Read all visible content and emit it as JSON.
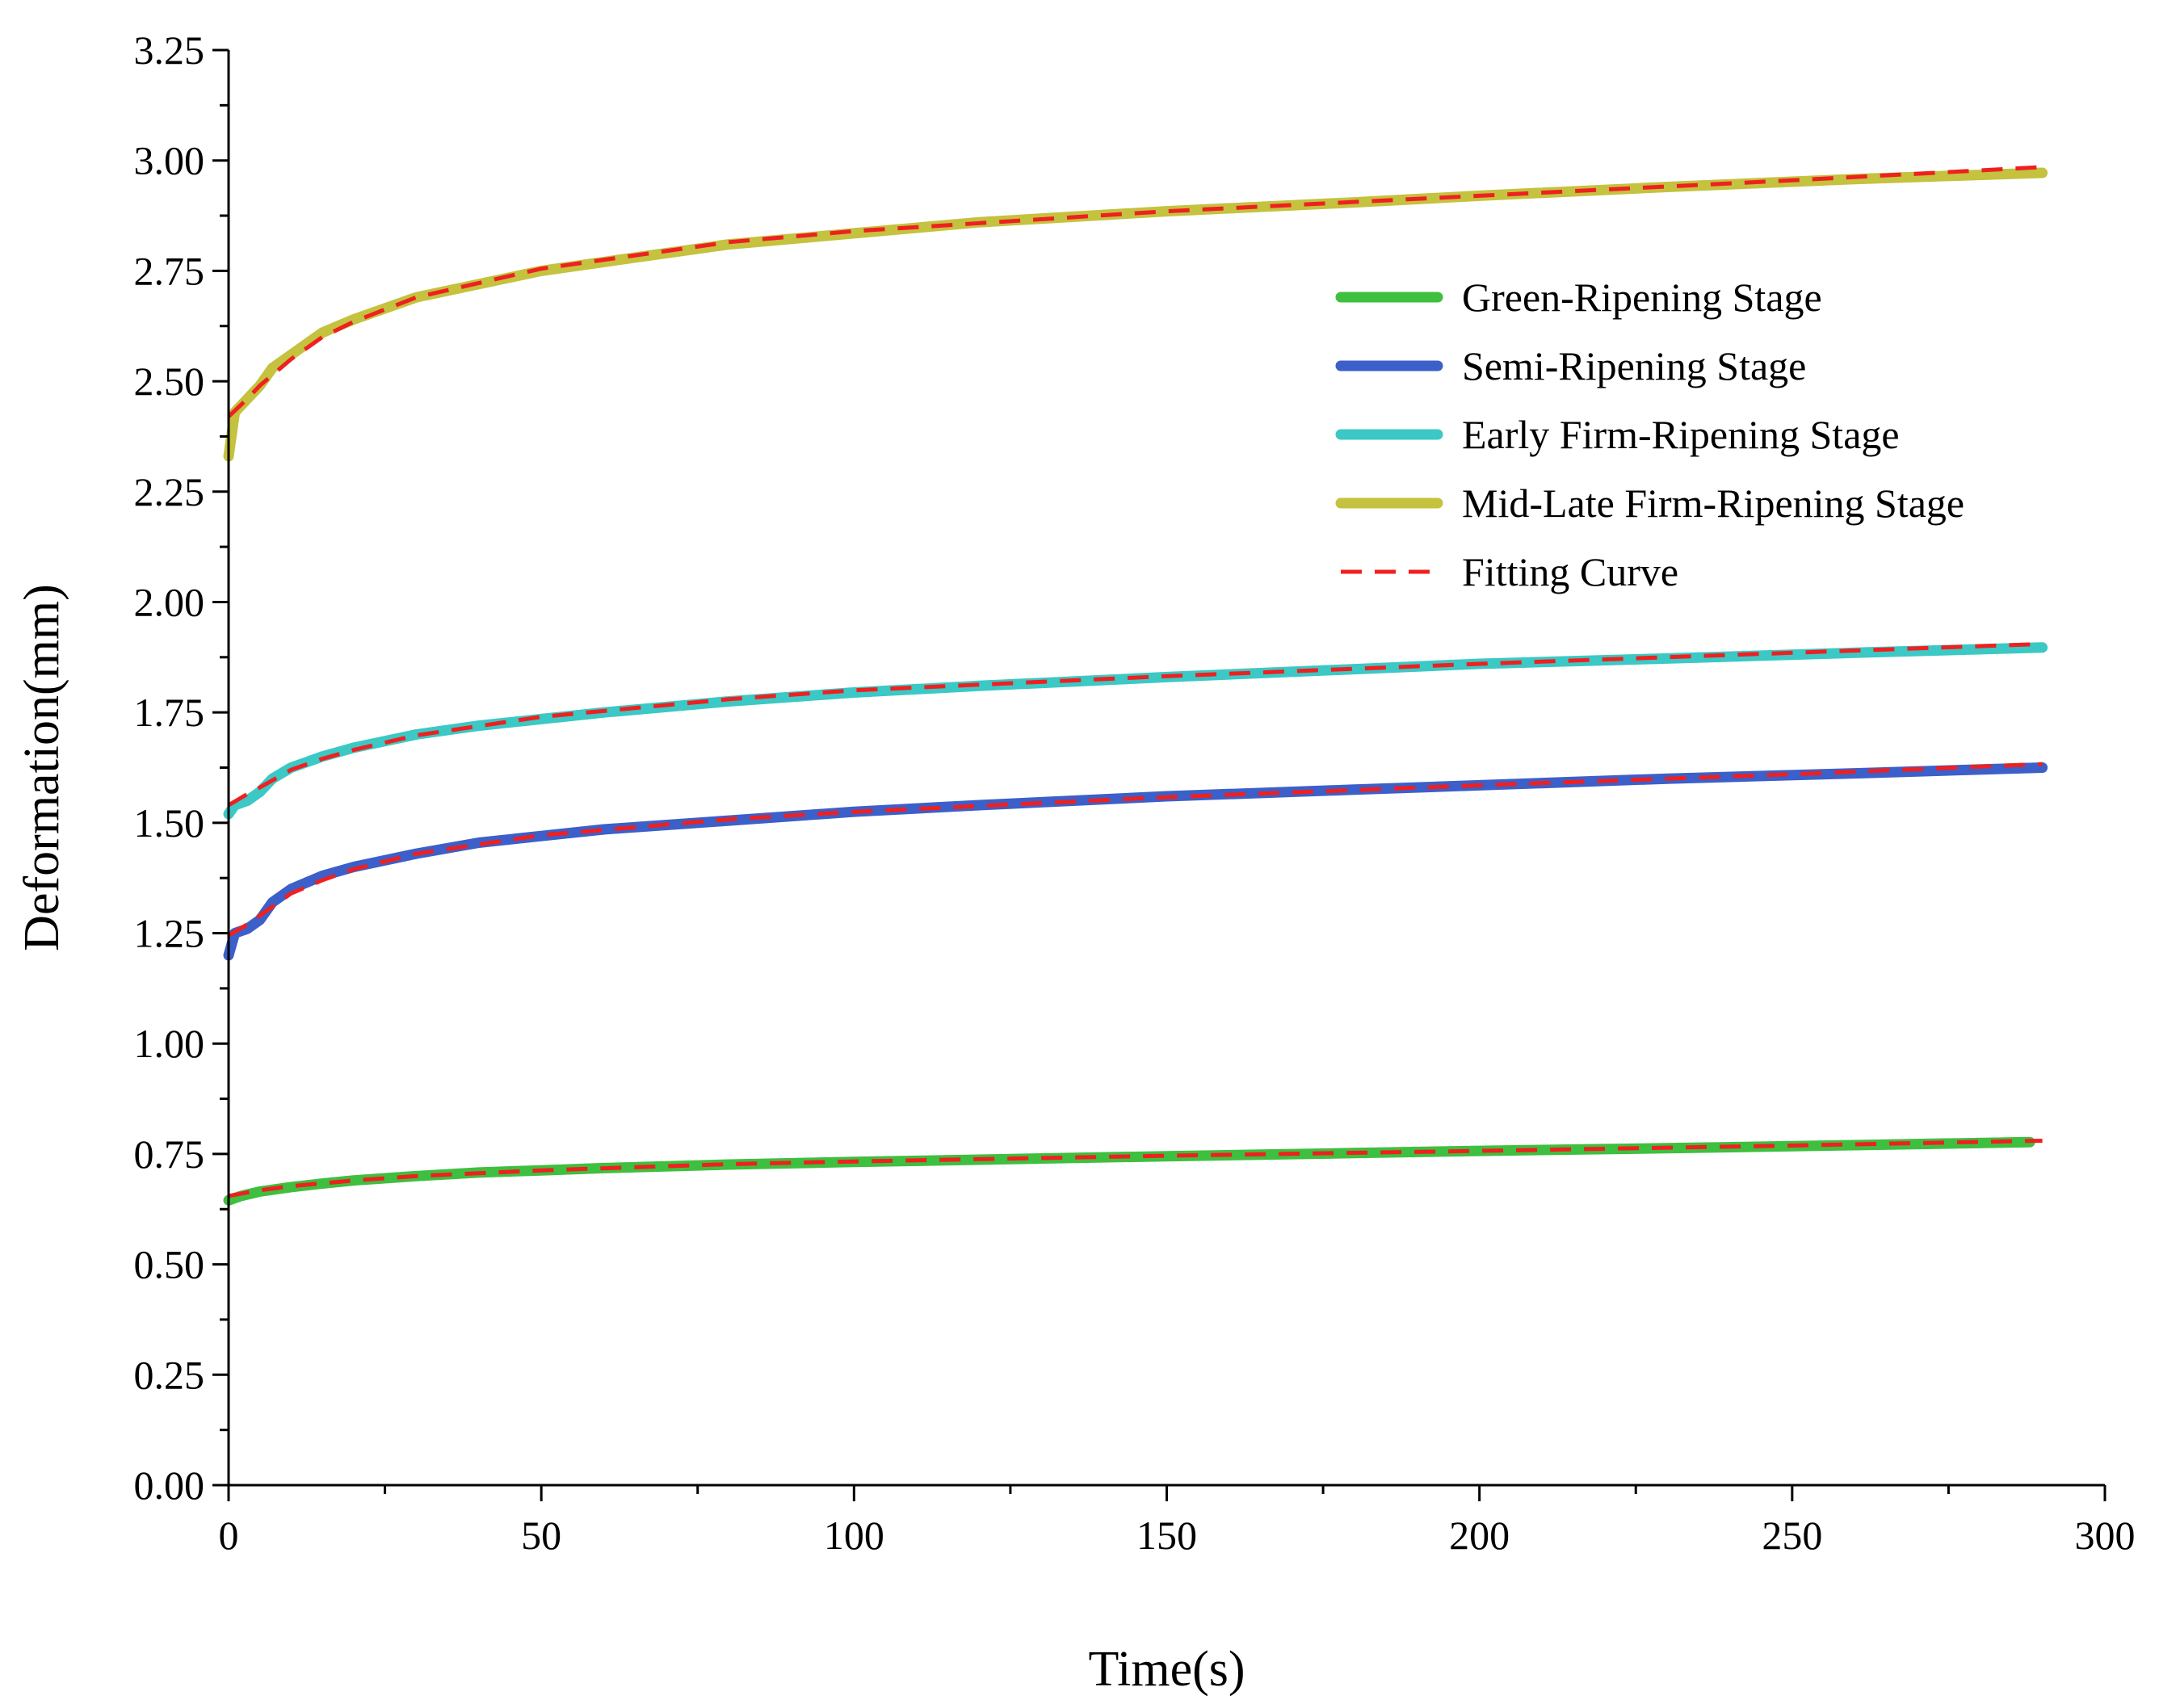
{
  "chart_data": {
    "type": "line",
    "title": "",
    "xlabel": "Time(s)",
    "ylabel": "Deformation(mm)",
    "xlim": [
      0,
      300
    ],
    "ylim": [
      0,
      3.25
    ],
    "x_ticks": [
      0,
      50,
      100,
      150,
      200,
      250,
      300
    ],
    "x_tick_labels": [
      "0",
      "50",
      "100",
      "150",
      "200",
      "250",
      "300"
    ],
    "y_ticks": [
      0,
      0.25,
      0.5,
      0.75,
      1.0,
      1.25,
      1.5,
      1.75,
      2.0,
      2.25,
      2.5,
      2.75,
      3.0,
      3.25
    ],
    "y_tick_labels": [
      "0.00",
      "0.25",
      "0.50",
      "0.75",
      "1.00",
      "1.25",
      "1.50",
      "1.75",
      "2.00",
      "2.25",
      "2.50",
      "2.75",
      "3.00",
      "3.25"
    ],
    "grid": false,
    "legend_position": "top-right",
    "series": [
      {
        "name": "Green-Ripening Stage",
        "color": "#3fbf3f",
        "style": "solid",
        "x": [
          0,
          2,
          5,
          10,
          15,
          20,
          30,
          40,
          50,
          60,
          80,
          100,
          120,
          150,
          180,
          200,
          230,
          260,
          288
        ],
        "y": [
          0.645,
          0.655,
          0.665,
          0.675,
          0.683,
          0.69,
          0.7,
          0.708,
          0.713,
          0.718,
          0.726,
          0.732,
          0.737,
          0.745,
          0.752,
          0.757,
          0.763,
          0.77,
          0.777
        ]
      },
      {
        "name": "Semi-Ripening Stage",
        "color": "#3c5fc9",
        "style": "solid",
        "x": [
          0,
          1,
          3,
          5,
          7,
          10,
          15,
          20,
          30,
          40,
          50,
          60,
          80,
          100,
          120,
          150,
          180,
          200,
          230,
          260,
          290
        ],
        "y": [
          1.2,
          1.25,
          1.26,
          1.28,
          1.32,
          1.35,
          1.38,
          1.4,
          1.43,
          1.455,
          1.47,
          1.485,
          1.505,
          1.525,
          1.54,
          1.56,
          1.575,
          1.585,
          1.6,
          1.612,
          1.625
        ]
      },
      {
        "name": "Early Firm-Ripening Stage",
        "color": "#3cc8c4",
        "style": "solid",
        "x": [
          0,
          1,
          3,
          5,
          7,
          10,
          15,
          20,
          30,
          40,
          50,
          60,
          80,
          100,
          120,
          150,
          180,
          200,
          230,
          260,
          290
        ],
        "y": [
          1.52,
          1.54,
          1.55,
          1.57,
          1.6,
          1.625,
          1.65,
          1.67,
          1.7,
          1.72,
          1.735,
          1.75,
          1.775,
          1.795,
          1.81,
          1.83,
          1.848,
          1.86,
          1.872,
          1.885,
          1.897
        ]
      },
      {
        "name": "Mid-Late Firm-Ripening Stage",
        "color": "#c4c23e",
        "style": "solid",
        "x": [
          0,
          1,
          3,
          5,
          7,
          10,
          15,
          20,
          30,
          40,
          50,
          60,
          80,
          100,
          120,
          150,
          180,
          200,
          230,
          260,
          290
        ],
        "y": [
          2.33,
          2.43,
          2.46,
          2.49,
          2.53,
          2.56,
          2.61,
          2.64,
          2.69,
          2.72,
          2.75,
          2.77,
          2.81,
          2.835,
          2.86,
          2.885,
          2.905,
          2.92,
          2.94,
          2.958,
          2.972
        ]
      },
      {
        "name": "Fitting Curve",
        "color": "#ee2020",
        "style": "dashed",
        "curves": [
          {
            "x": [
              0,
              5,
              10,
              20,
              30,
              50,
              80,
              100,
              150,
              200,
              250,
              290
            ],
            "y": [
              0.655,
              0.668,
              0.677,
              0.69,
              0.7,
              0.713,
              0.727,
              0.733,
              0.746,
              0.757,
              0.769,
              0.78
            ]
          },
          {
            "x": [
              0,
              3,
              5,
              10,
              15,
              20,
              30,
              50,
              80,
              100,
              150,
              200,
              250,
              290
            ],
            "y": [
              1.245,
              1.27,
              1.29,
              1.34,
              1.37,
              1.395,
              1.43,
              1.472,
              1.508,
              1.525,
              1.558,
              1.585,
              1.61,
              1.633
            ]
          },
          {
            "x": [
              0,
              3,
              5,
              10,
              15,
              20,
              30,
              50,
              80,
              100,
              150,
              200,
              250,
              290
            ],
            "y": [
              1.54,
              1.565,
              1.58,
              1.62,
              1.645,
              1.665,
              1.698,
              1.74,
              1.78,
              1.8,
              1.832,
              1.86,
              1.885,
              1.905
            ]
          },
          {
            "x": [
              0,
              3,
              5,
              10,
              15,
              20,
              30,
              50,
              80,
              100,
              150,
              200,
              250,
              290
            ],
            "y": [
              2.42,
              2.46,
              2.49,
              2.55,
              2.6,
              2.635,
              2.69,
              2.755,
              2.815,
              2.84,
              2.885,
              2.92,
              2.955,
              2.985
            ]
          }
        ]
      }
    ]
  }
}
